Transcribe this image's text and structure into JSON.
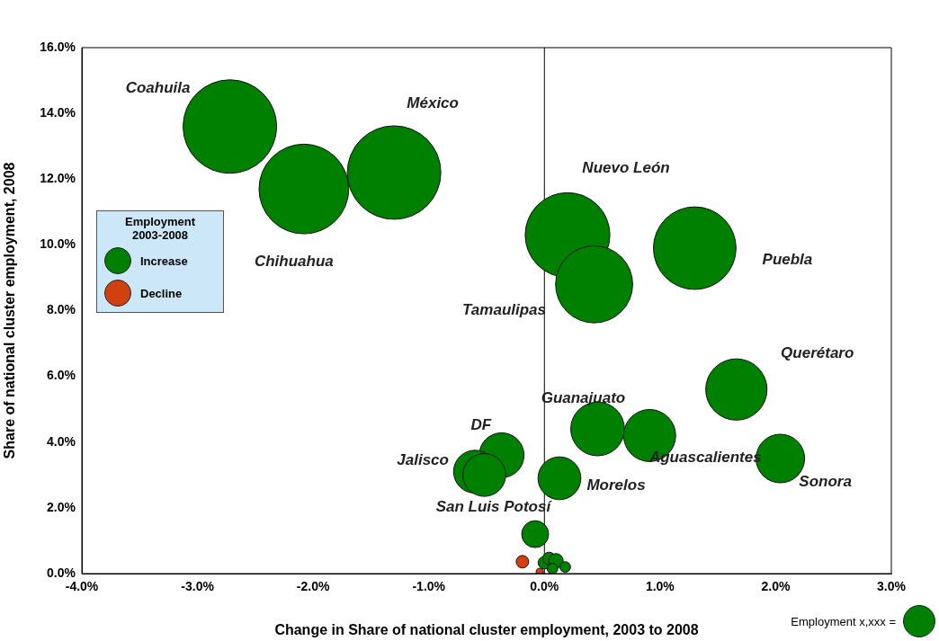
{
  "chart_data": {
    "type": "bubble",
    "xlabel": "Change in Share of national cluster employment, 2003 to 2008",
    "ylabel": "Share of national cluster employment, 2008",
    "legend_title": "Employment 2003-2008",
    "legend": "left",
    "grid": false,
    "xlim": [
      -4,
      3
    ],
    "xticks": [
      {
        "value": -4,
        "label": "-4.0%"
      },
      {
        "value": -3,
        "label": "-3.0%"
      },
      {
        "value": -2,
        "label": "-2.0%"
      },
      {
        "value": -1,
        "label": "-1.0%"
      },
      {
        "value": 0,
        "label": "0.0%"
      },
      {
        "value": 1,
        "label": "1.0%"
      },
      {
        "value": 2,
        "label": "2.0%"
      },
      {
        "value": 3,
        "label": "3.0%"
      }
    ],
    "ylim": [
      0,
      16
    ],
    "yticks": [
      {
        "value": 0,
        "label": "0.0%"
      },
      {
        "value": 2,
        "label": "2.0%"
      },
      {
        "value": 4,
        "label": "4.0%"
      },
      {
        "value": 6,
        "label": "6.0%"
      },
      {
        "value": 8,
        "label": "8.0%"
      },
      {
        "value": 10,
        "label": "10.0%"
      },
      {
        "value": 12,
        "label": "12.0%"
      },
      {
        "value": 14,
        "label": "14.0%"
      },
      {
        "value": 16,
        "label": "16.0%"
      }
    ],
    "ref_lines": [
      {
        "axis": "x",
        "value": 0,
        "color": "#000000"
      }
    ],
    "series": [
      {
        "name": "Increase",
        "color": "#008000",
        "x": [
          -2.72,
          -2.08,
          -1.3,
          0.2,
          1.3,
          0.43,
          1.66,
          0.46,
          0.91,
          2.04,
          0.13,
          -0.37,
          -0.6,
          -0.52,
          -0.08,
          0.0,
          0.04,
          0.1,
          0.07,
          0.18
        ],
        "values": [
          13.6,
          11.7,
          12.2,
          10.3,
          9.9,
          8.8,
          5.6,
          4.4,
          4.2,
          3.5,
          2.9,
          3.6,
          3.1,
          3.0,
          1.2,
          0.33,
          0.46,
          0.39,
          0.15,
          0.2
        ],
        "sizes": [
          1,
          0.92,
          1,
          0.82,
          0.78,
          0.68,
          0.43,
          0.33,
          0.31,
          0.27,
          0.21,
          0.23,
          0.21,
          0.21,
          0.083,
          0.018,
          0.018,
          0.024,
          0.013,
          0.013
        ]
      },
      {
        "name": "Decline",
        "color": "#d04010",
        "x": [
          -0.19,
          -0.04
        ],
        "values": [
          0.36,
          0.05
        ],
        "sizes": [
          0.018,
          0.006
        ]
      }
    ],
    "annotations": [
      "Coahuila",
      "Chihuahua",
      "México",
      "Nuevo León",
      "Puebla",
      "Tamaulipas",
      "Querétaro",
      "Guanajuato",
      "Aguascalientes",
      "Sonora",
      "Morelos",
      "DF",
      "Jalisco",
      "San Luis Potosí",
      "Employment x,xxx ="
    ]
  }
}
